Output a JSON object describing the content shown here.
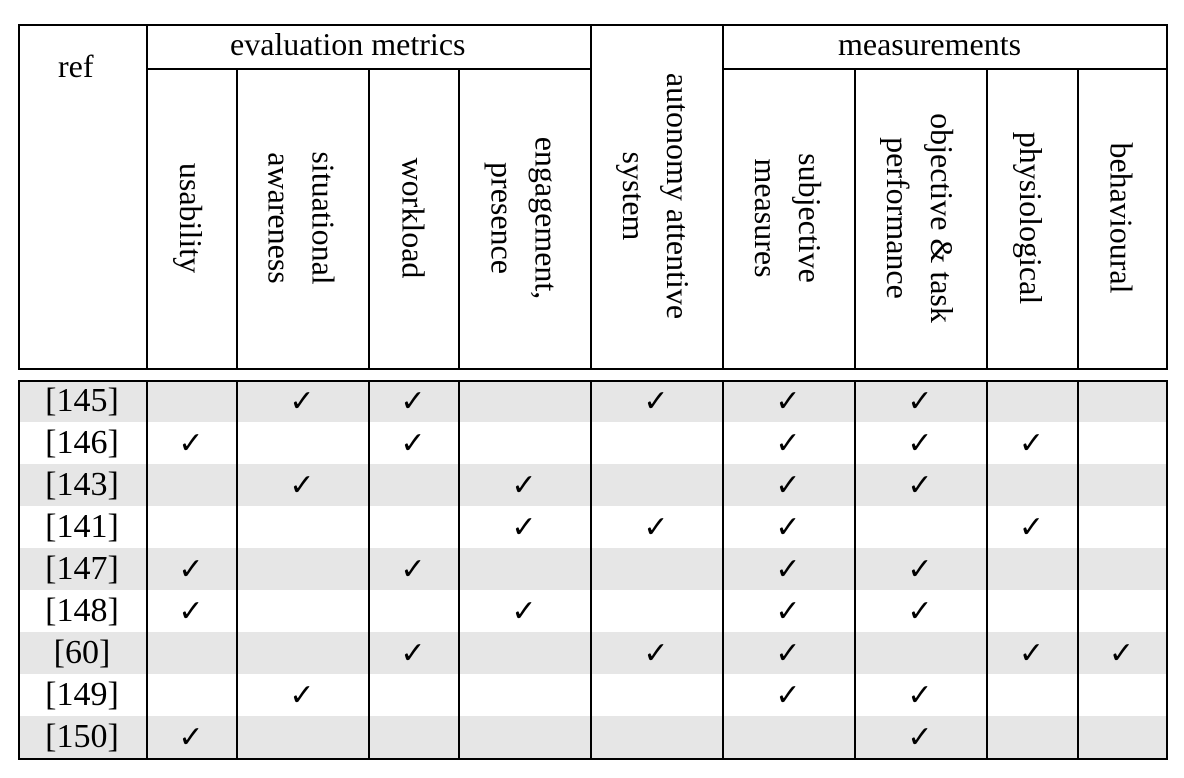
{
  "header": {
    "ref": "ref",
    "group_evaluation": "evaluation metrics",
    "group_measurements": "measurements",
    "columns": [
      {
        "key": "usability",
        "lines": [
          "usability"
        ]
      },
      {
        "key": "situational_awareness",
        "lines": [
          "situational",
          "awareness"
        ]
      },
      {
        "key": "workload",
        "lines": [
          "workload"
        ]
      },
      {
        "key": "engagement_presence",
        "lines": [
          "engagement,",
          "presence"
        ]
      },
      {
        "key": "autonomy_attentive_system",
        "lines": [
          "autonomy attentive",
          "system"
        ]
      },
      {
        "key": "subjective_measures",
        "lines": [
          "subjective",
          "measures"
        ]
      },
      {
        "key": "objective_task_performance",
        "lines": [
          "objective & task",
          "performance"
        ]
      },
      {
        "key": "physiological",
        "lines": [
          "physiological"
        ]
      },
      {
        "key": "behavioural",
        "lines": [
          "behavioural"
        ]
      }
    ]
  },
  "check_glyph": "✓",
  "rows": [
    {
      "ref": "[145]",
      "checks": [
        0,
        1,
        1,
        0,
        1,
        1,
        1,
        0,
        0
      ]
    },
    {
      "ref": "[146]",
      "checks": [
        1,
        0,
        1,
        0,
        0,
        1,
        1,
        1,
        0
      ]
    },
    {
      "ref": "[143]",
      "checks": [
        0,
        1,
        0,
        1,
        0,
        1,
        1,
        0,
        0
      ]
    },
    {
      "ref": "[141]",
      "checks": [
        0,
        0,
        0,
        1,
        1,
        1,
        0,
        1,
        0
      ]
    },
    {
      "ref": "[147]",
      "checks": [
        1,
        0,
        1,
        0,
        0,
        1,
        1,
        0,
        0
      ]
    },
    {
      "ref": "[148]",
      "checks": [
        1,
        0,
        0,
        1,
        0,
        1,
        1,
        0,
        0
      ]
    },
    {
      "ref": "[60]",
      "checks": [
        0,
        0,
        1,
        0,
        1,
        1,
        0,
        1,
        1
      ]
    },
    {
      "ref": "[149]",
      "checks": [
        0,
        1,
        0,
        0,
        0,
        1,
        1,
        0,
        0
      ]
    },
    {
      "ref": "[150]",
      "checks": [
        1,
        0,
        0,
        0,
        0,
        0,
        1,
        0,
        0
      ]
    }
  ],
  "row_shading": [
    "#e6e6e6",
    "#ffffff"
  ]
}
